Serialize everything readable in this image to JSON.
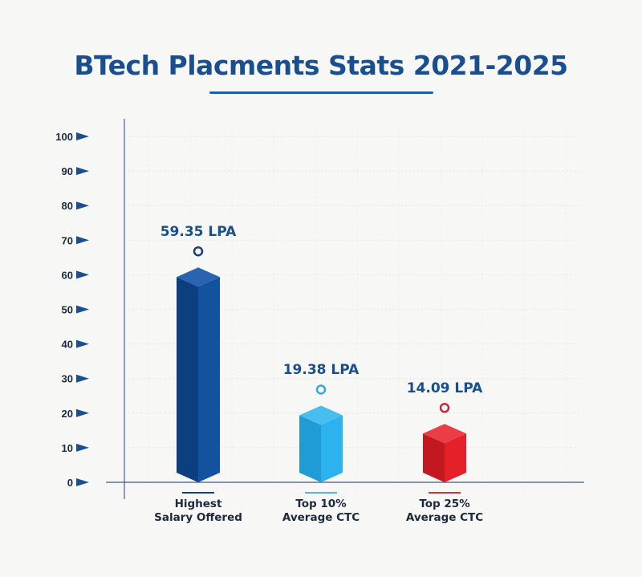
{
  "title": "BTech Placments Stats 2021-2025",
  "chart_data": {
    "type": "bar",
    "title": "BTech Placments Stats 2021-2025",
    "xlabel": "",
    "ylabel": "",
    "ylim": [
      0,
      100
    ],
    "yticks": [
      0,
      10,
      20,
      30,
      40,
      50,
      60,
      70,
      80,
      90,
      100
    ],
    "grid": true,
    "legend": "none",
    "categories": [
      "Highest Salary Offered",
      "Top 10% Average CTC",
      "Top 25% Average CTC"
    ],
    "values": [
      59.35,
      19.38,
      14.09
    ],
    "unit": "LPA",
    "data_labels": [
      "59.35 LPA",
      "19.38 LPA",
      "14.09 LPA"
    ],
    "colors": [
      "#0f4a94",
      "#29aee8",
      "#e4202a"
    ]
  },
  "categories": [
    {
      "line1": "Highest",
      "line2": "Salary Offered",
      "value_label": "59.35 LPA",
      "color": "#1f3f78"
    },
    {
      "line1": "Top 10%",
      "line2": "Average CTC",
      "value_label": "19.38 LPA",
      "color": "#4fb8e3"
    },
    {
      "line1": "Top 25%",
      "line2": "Average CTC",
      "value_label": "14.09 LPA",
      "color": "#d9303b"
    }
  ]
}
